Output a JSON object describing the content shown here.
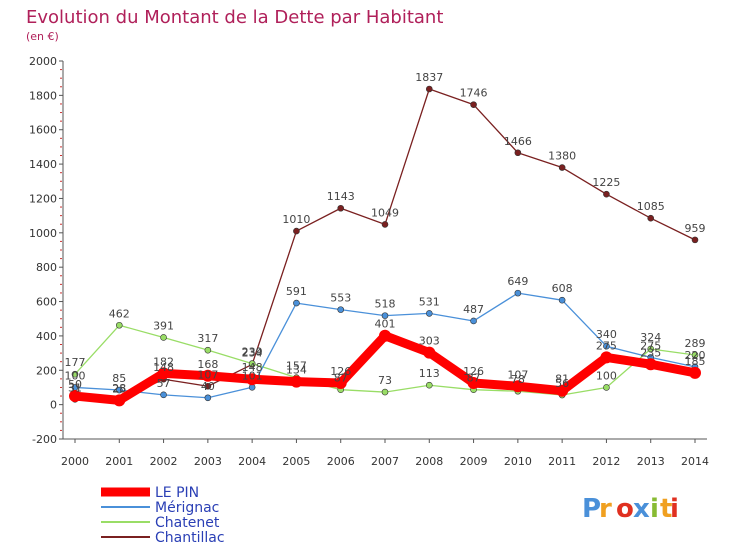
{
  "chart_data": {
    "type": "line",
    "title": "Evolution du Montant de la Dette par Habitant",
    "subtitle": "(en €)",
    "x": [
      "2000",
      "2001",
      "2002",
      "2003",
      "2004",
      "2005",
      "2006",
      "2007",
      "2008",
      "2009",
      "2010",
      "2011",
      "2012",
      "2013",
      "2014"
    ],
    "ylim": [
      -200,
      2000
    ],
    "yticks": [
      "-200",
      "0",
      "200",
      "400",
      "600",
      "800",
      "1000",
      "1200",
      "1400",
      "1600",
      "1800",
      "2000"
    ],
    "grid": false,
    "legend_position": "bottom-left",
    "series": [
      {
        "name": "LE PIN",
        "color": "#ff0000",
        "values": [
          50,
          25,
          182,
          168,
          148,
          134,
          126,
          401,
          303,
          126,
          107,
          81,
          275,
          235,
          185
        ],
        "labels": [
          "50",
          "25",
          "182",
          "168",
          "148",
          "134",
          "126",
          "401",
          "303",
          "126",
          "107",
          "81",
          "275",
          "235",
          "185"
        ]
      },
      {
        "name": "Mérignac",
        "color": "#4a90d9",
        "values": [
          100,
          85,
          57,
          40,
          101,
          591,
          553,
          518,
          531,
          487,
          649,
          608,
          340,
          275,
          220
        ],
        "labels": [
          "100",
          "85",
          "57",
          "40",
          "101",
          "591",
          "553",
          "518",
          "531",
          "487",
          "649",
          "608",
          "340",
          "275",
          "220"
        ]
      },
      {
        "name": "Chatenet",
        "color": "#99dd66",
        "values": [
          177,
          462,
          391,
          317,
          239,
          157,
          87,
          73,
          113,
          87,
          78,
          56,
          100,
          324,
          289
        ],
        "labels": [
          "177",
          "462",
          "391",
          "317",
          "239",
          "157",
          "87",
          "73",
          "113",
          "87",
          "78",
          "56",
          "100",
          "324",
          "289"
        ]
      },
      {
        "name": "Chantillac",
        "color": "#7a2020",
        "values": [
          31,
          28,
          148,
          107,
          234,
          1010,
          1143,
          1049,
          1837,
          1746,
          1466,
          1380,
          1225,
          1085,
          959
        ],
        "labels": [
          "31",
          "28",
          "148",
          "107",
          "234",
          "1010",
          "1143",
          "1049",
          "1837",
          "1746",
          "1466",
          "1380",
          "1225",
          "1085",
          "959"
        ]
      }
    ]
  },
  "brand": {
    "letters": [
      "P",
      "r",
      "o",
      "x",
      "i",
      "t",
      "i"
    ],
    "colors": [
      "#4a90d9",
      "#f0a020",
      "#e03020",
      "#4a90d9",
      "#88bb33",
      "#f0a020",
      "#e03020"
    ]
  }
}
